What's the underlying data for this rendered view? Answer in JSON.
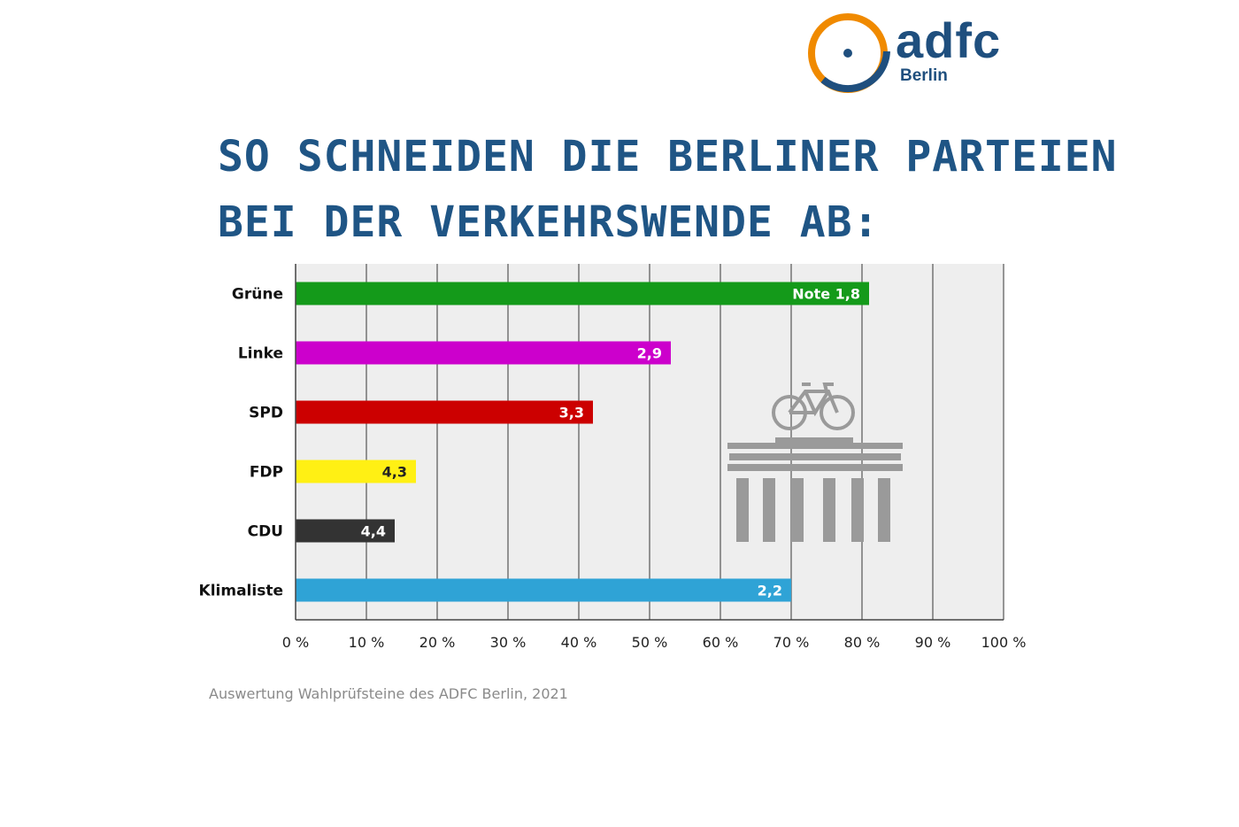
{
  "logo": {
    "brand": "adfc",
    "city": "Berlin",
    "colors": {
      "ring": "#f08a00",
      "text": "#1f4f7e"
    }
  },
  "title": {
    "line1": "So schneiden die Berliner Parteien",
    "line2": "bei der Verkehrswende ab:"
  },
  "chart_data": {
    "type": "bar",
    "orientation": "horizontal",
    "categories": [
      "Grüne",
      "Linke",
      "SPD",
      "FDP",
      "CDU",
      "Klimaliste"
    ],
    "values": [
      81,
      53,
      42,
      17,
      14,
      70
    ],
    "value_unit": "%",
    "bar_labels": [
      "Note 1,8",
      "2,9",
      "3,3",
      "4,3",
      "4,4",
      "2,2"
    ],
    "bar_colors": [
      "#149a1a",
      "#cc00cc",
      "#cc0000",
      "#fff014",
      "#333333",
      "#2fa3d6"
    ],
    "label_colors": [
      "#ffffff",
      "#ffffff",
      "#ffffff",
      "#222222",
      "#ffffff",
      "#ffffff"
    ],
    "xlim": [
      0,
      100
    ],
    "xticks": [
      0,
      10,
      20,
      30,
      40,
      50,
      60,
      70,
      80,
      90,
      100
    ],
    "xtick_labels": [
      "0 %",
      "10 %",
      "20 %",
      "30 %",
      "40 %",
      "50 %",
      "60 %",
      "70 %",
      "80 %",
      "90 %",
      "100 %"
    ],
    "grid": true
  },
  "source": "Auswertung Wahlprüfsteine des ADFC Berlin, 2021"
}
